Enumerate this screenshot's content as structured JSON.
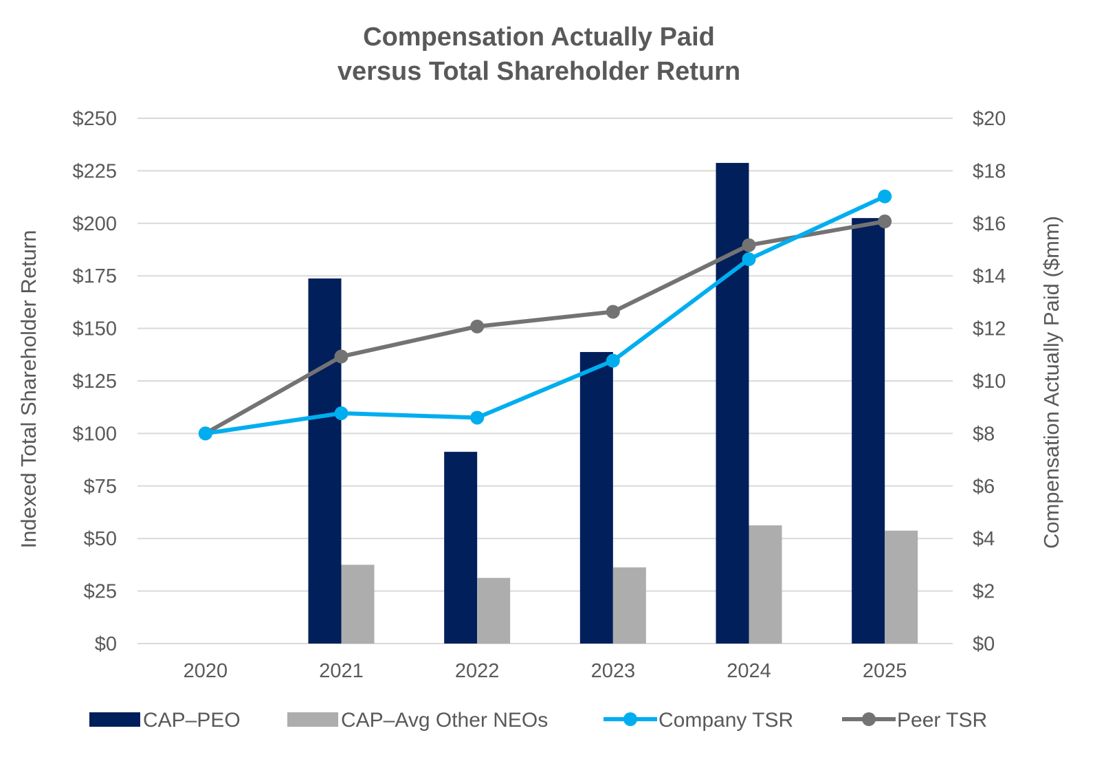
{
  "chart_data": {
    "type": "bar+line",
    "title": [
      "Compensation Actually Paid",
      "versus Total Shareholder Return"
    ],
    "categories": [
      "2020",
      "2021",
      "2022",
      "2023",
      "2024",
      "2025"
    ],
    "ylabel_left": "Indexed Total Shareholder Return",
    "ylabel_right": "Compensation Actually Paid ($mm)",
    "ylim_left": [
      0,
      250
    ],
    "ylim_right": [
      0,
      20
    ],
    "yticks_left": [
      "$0",
      "$25",
      "$50",
      "$75",
      "$100",
      "$125",
      "$150",
      "$175",
      "$200",
      "$225",
      "$250"
    ],
    "yticks_right": [
      "$0",
      "$2",
      "$4",
      "$6",
      "$8",
      "$10",
      "$12",
      "$14",
      "$16",
      "$18",
      "$20"
    ],
    "grid": true,
    "legend_position": "bottom",
    "series": [
      {
        "name": "CAP–PEO",
        "type": "bar",
        "axis": "right",
        "color": "#001F5B",
        "values": [
          null,
          13.9,
          7.3,
          11.1,
          18.3,
          16.2
        ]
      },
      {
        "name": "CAP–Avg Other NEOs",
        "type": "bar",
        "axis": "right",
        "color": "#ADADAD",
        "values": [
          null,
          3.0,
          2.5,
          2.9,
          4.5,
          4.3
        ]
      },
      {
        "name": "Company TSR",
        "type": "line",
        "axis": "left",
        "color": "#00AEEF",
        "values": [
          100,
          109.6,
          107.5,
          134.6,
          182.9,
          212.8
        ]
      },
      {
        "name": "Peer TSR",
        "type": "line",
        "axis": "left",
        "color": "#737373",
        "values": [
          100,
          136.6,
          150.9,
          157.9,
          189.6,
          200.9
        ]
      }
    ]
  }
}
